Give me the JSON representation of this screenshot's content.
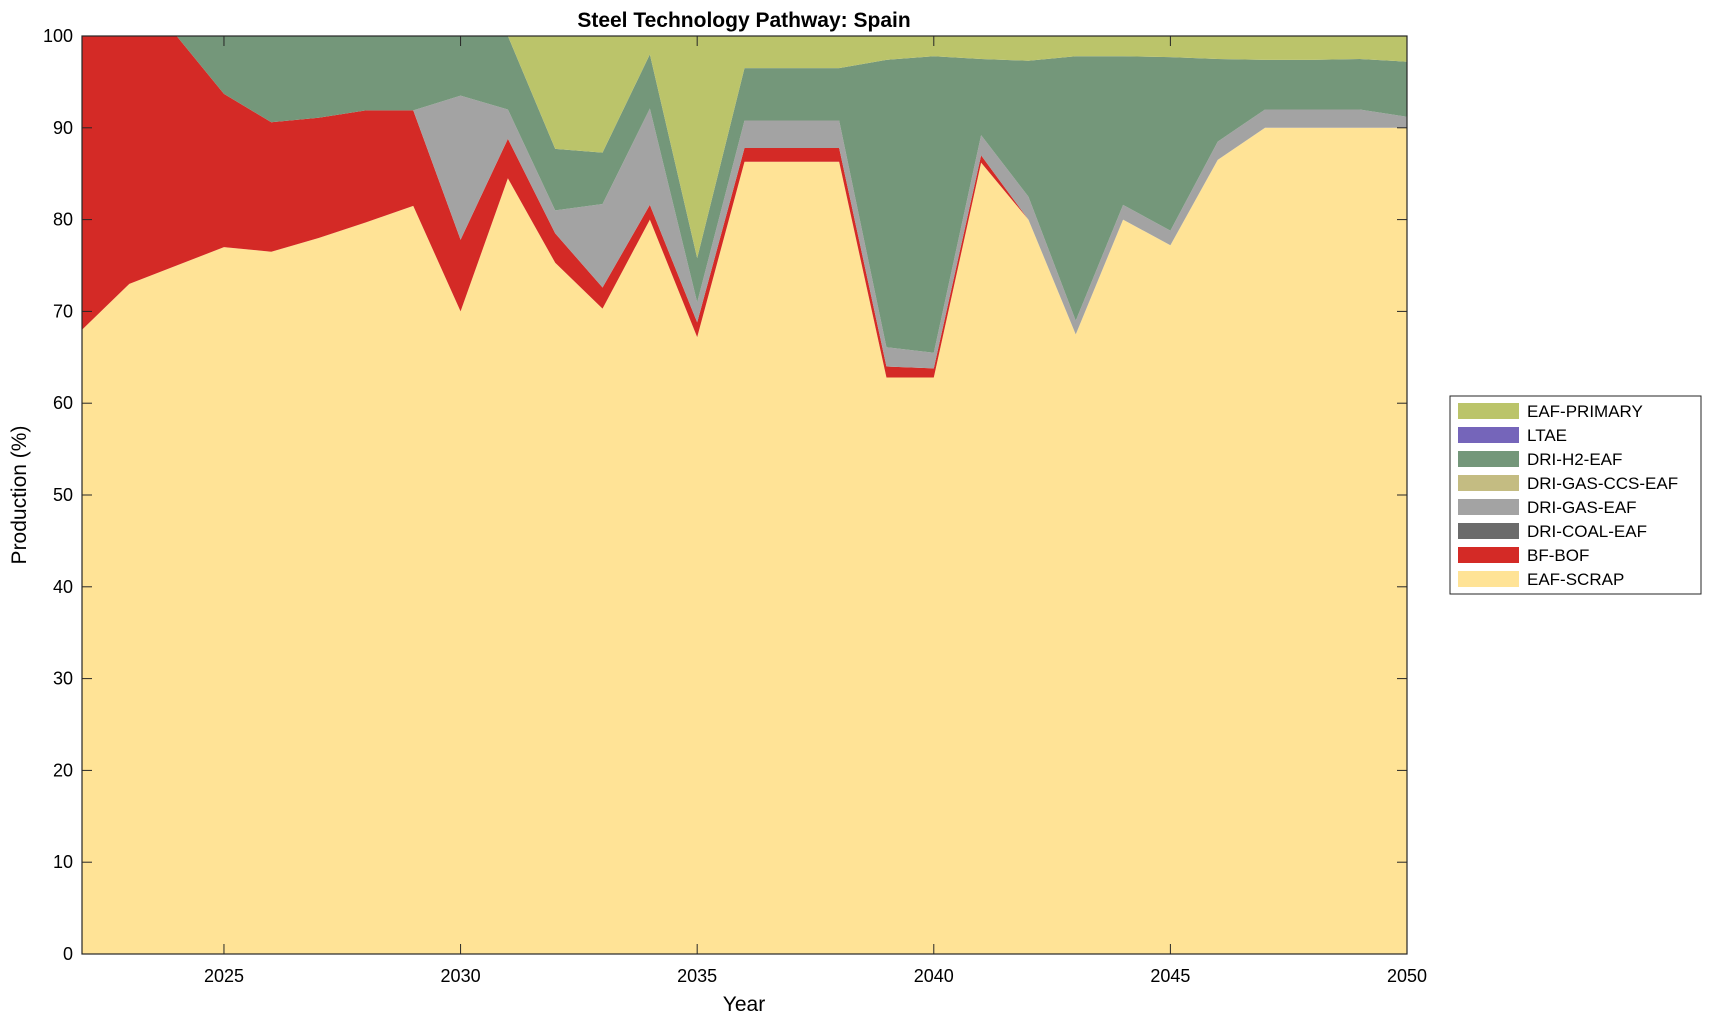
{
  "chart_data": {
    "type": "area",
    "title": "Steel Technology Pathway: Spain",
    "xlabel": "Year",
    "ylabel": "Production (%)",
    "xlim": [
      2022,
      2050
    ],
    "ylim": [
      0,
      100
    ],
    "xticks": [
      2025,
      2030,
      2035,
      2040,
      2045,
      2050
    ],
    "yticks": [
      0,
      10,
      20,
      30,
      40,
      50,
      60,
      70,
      80,
      90,
      100
    ],
    "grid": false,
    "legend_position": "right",
    "x": [
      2022,
      2023,
      2024,
      2025,
      2026,
      2027,
      2028,
      2029,
      2030,
      2031,
      2032,
      2033,
      2034,
      2035,
      2036,
      2037,
      2038,
      2039,
      2040,
      2041,
      2042,
      2043,
      2044,
      2045,
      2046,
      2047,
      2048,
      2049,
      2050
    ],
    "series": [
      {
        "name": "EAF-SCRAP",
        "color": "#FFE396",
        "values": [
          68,
          73,
          75,
          77,
          76.5,
          78,
          79.7,
          81.5,
          70,
          84.5,
          75.3,
          70.3,
          80,
          67.2,
          86.3,
          86.3,
          86.3,
          62.8,
          62.8,
          86.2,
          80,
          67.5,
          80,
          77.2,
          86.5,
          90,
          90,
          90,
          90
        ]
      },
      {
        "name": "BF-BOF",
        "color": "#D42A26",
        "values": [
          32,
          27,
          25,
          16.7,
          14.1,
          13.1,
          12.2,
          10.4,
          7.8,
          4.3,
          3.2,
          2.3,
          1.6,
          1.6,
          1.5,
          1.5,
          1.5,
          1.2,
          1.0,
          0.8,
          0,
          0,
          0,
          0,
          0,
          0,
          0,
          0,
          0
        ]
      },
      {
        "name": "DRI-COAL-EAF",
        "color": "#6B6B6B",
        "values": [
          0,
          0,
          0,
          0,
          0,
          0,
          0,
          0,
          0,
          0,
          0,
          0,
          0,
          0,
          0,
          0,
          0,
          0,
          0,
          0,
          0,
          0,
          0,
          0,
          0,
          0,
          0,
          0,
          0
        ]
      },
      {
        "name": "DRI-GAS-EAF",
        "color": "#A3A3A3",
        "values": [
          0,
          0,
          0,
          0,
          0,
          0,
          0,
          0,
          15.7,
          3.2,
          2.5,
          9.1,
          10.5,
          2.2,
          3,
          3,
          3,
          2.1,
          1.7,
          2.2,
          2.5,
          1.5,
          1.6,
          1.6,
          2,
          2,
          2,
          2,
          1.2
        ]
      },
      {
        "name": "DRI-GAS-CCS-EAF",
        "color": "#C4BC82",
        "values": [
          0,
          0,
          0,
          0,
          0,
          0,
          0,
          0,
          0,
          0,
          0,
          0,
          0,
          0,
          0,
          0,
          0,
          0,
          0,
          0,
          0,
          0,
          0,
          0,
          0,
          0,
          0,
          0,
          0
        ]
      },
      {
        "name": "DRI-H2-EAF",
        "color": "#74977A",
        "values": [
          0,
          0,
          0,
          6.3,
          9.4,
          8.9,
          8.1,
          8.1,
          6.5,
          8,
          6.7,
          5.6,
          5.9,
          4.8,
          5.7,
          5.7,
          5.7,
          31.3,
          32.3,
          8.3,
          14.8,
          28.8,
          16.2,
          18.9,
          9,
          5.4,
          5.4,
          5.5,
          6
        ]
      },
      {
        "name": "LTAE",
        "color": "#7565BA",
        "values": [
          0,
          0,
          0,
          0,
          0,
          0,
          0,
          0,
          0,
          0,
          0,
          0,
          0,
          0,
          0,
          0,
          0,
          0,
          0,
          0,
          0,
          0,
          0,
          0,
          0,
          0,
          0,
          0,
          0
        ]
      },
      {
        "name": "EAF-PRIMARY",
        "color": "#BBC46A",
        "values": [
          0,
          0,
          0,
          0,
          0,
          0,
          0,
          0,
          0,
          0,
          12.3,
          12.7,
          2,
          24.2,
          3.5,
          3.5,
          3.5,
          2.6,
          2.2,
          2.5,
          2.7,
          2.2,
          2.2,
          2.3,
          2.5,
          2.6,
          2.6,
          2.5,
          2.8
        ]
      }
    ],
    "legend_order": [
      "EAF-PRIMARY",
      "LTAE",
      "DRI-H2-EAF",
      "DRI-GAS-CCS-EAF",
      "DRI-GAS-EAF",
      "DRI-COAL-EAF",
      "BF-BOF",
      "EAF-SCRAP"
    ]
  }
}
